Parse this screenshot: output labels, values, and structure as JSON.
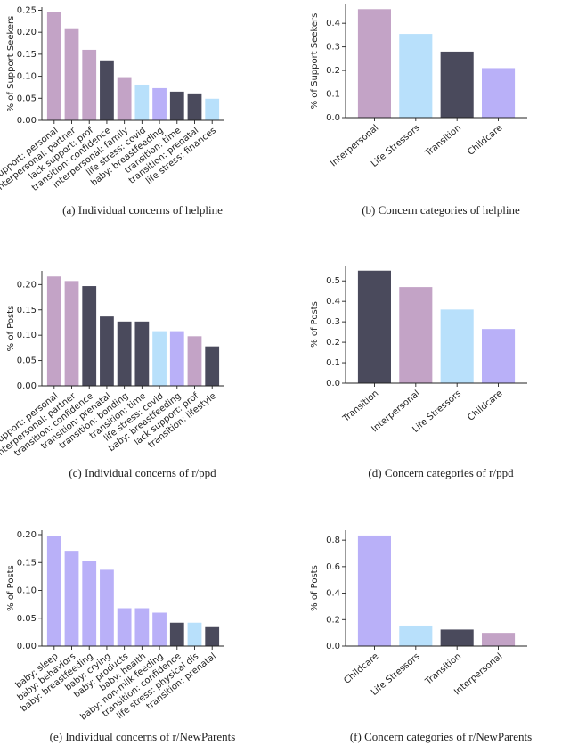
{
  "chart_data": [
    {
      "type": "bar",
      "caption": "(a)  Individual concerns of helpline",
      "ylabel": "% of Support Seekers",
      "categories": [
        "lack support: personal",
        "interpersonal: partner",
        "lack support: prof",
        "transition: confidence",
        "interpersonal: family",
        "life stress: covid",
        "baby: breastfeeding",
        "transition: time",
        "transition: prenatal",
        "life stress: finances"
      ],
      "values": [
        0.245,
        0.209,
        0.16,
        0.136,
        0.098,
        0.081,
        0.073,
        0.065,
        0.061,
        0.049
      ],
      "colors": [
        "#c3a3c6",
        "#c3a3c6",
        "#c3a3c6",
        "#4a4a5c",
        "#c3a3c6",
        "#b8e0fb",
        "#b9b0f8",
        "#4a4a5c",
        "#4a4a5c",
        "#b8e0fb"
      ],
      "ylim": [
        0,
        0.257
      ],
      "yticks": [
        {
          "value": 0,
          "label": "0.00"
        },
        {
          "value": 0.05,
          "label": "0.05"
        },
        {
          "value": 0.1,
          "label": "0.10"
        },
        {
          "value": 0.15,
          "label": "0.15"
        },
        {
          "value": 0.2,
          "label": "0.20"
        },
        {
          "value": 0.25,
          "label": "0.25"
        }
      ]
    },
    {
      "type": "bar",
      "caption": "(b)  Concern categories of helpline",
      "ylabel": "% of Support Seekers",
      "categories": [
        "Interpersonal",
        "Life Stressors",
        "Transition",
        "Childcare"
      ],
      "values": [
        0.46,
        0.355,
        0.28,
        0.21
      ],
      "colors": [
        "#c3a3c6",
        "#b8e0fb",
        "#4a4a5c",
        "#b9b0f8"
      ],
      "ylim": [
        0,
        0.48
      ],
      "yticks": [
        {
          "value": 0,
          "label": "0.0"
        },
        {
          "value": 0.1,
          "label": "0.1"
        },
        {
          "value": 0.2,
          "label": "0.2"
        },
        {
          "value": 0.3,
          "label": "0.3"
        },
        {
          "value": 0.4,
          "label": "0.4"
        }
      ]
    },
    {
      "type": "bar",
      "caption": "(c)  Individual concerns of r/ppd",
      "ylabel": "% of Posts",
      "categories": [
        "lack support: personal",
        "interpersonal: partner",
        "transition: confidence",
        "transition: prenatal",
        "transition: bonding",
        "transition: time",
        "life stress: covid",
        "baby: breastfeeding",
        "lack support: prof",
        "transition: lifestyle"
      ],
      "values": [
        0.216,
        0.207,
        0.197,
        0.137,
        0.127,
        0.127,
        0.108,
        0.108,
        0.098,
        0.078
      ],
      "colors": [
        "#c3a3c6",
        "#c3a3c6",
        "#4a4a5c",
        "#4a4a5c",
        "#4a4a5c",
        "#4a4a5c",
        "#b8e0fb",
        "#b9b0f8",
        "#c3a3c6",
        "#4a4a5c"
      ],
      "ylim": [
        0,
        0.227
      ],
      "yticks": [
        {
          "value": 0,
          "label": "0.00"
        },
        {
          "value": 0.05,
          "label": "0.05"
        },
        {
          "value": 0.1,
          "label": "0.10"
        },
        {
          "value": 0.15,
          "label": "0.15"
        },
        {
          "value": 0.2,
          "label": "0.20"
        }
      ]
    },
    {
      "type": "bar",
      "caption": "(d)  Concern categories of r/ppd",
      "ylabel": "% of Posts",
      "categories": [
        "Transition",
        "Interpersonal",
        "Life Stressors",
        "Childcare"
      ],
      "values": [
        0.55,
        0.47,
        0.36,
        0.265
      ],
      "colors": [
        "#4a4a5c",
        "#c3a3c6",
        "#b8e0fb",
        "#b9b0f8"
      ],
      "ylim": [
        0,
        0.575
      ],
      "yticks": [
        {
          "value": 0,
          "label": "0.0"
        },
        {
          "value": 0.1,
          "label": "0.1"
        },
        {
          "value": 0.2,
          "label": "0.2"
        },
        {
          "value": 0.3,
          "label": "0.3"
        },
        {
          "value": 0.4,
          "label": "0.4"
        },
        {
          "value": 0.5,
          "label": "0.5"
        }
      ]
    },
    {
      "type": "bar",
      "caption": "(e)  Individual concerns of r/NewParents",
      "ylabel": "% of Posts",
      "categories": [
        "baby: sleep",
        "baby: behaviors",
        "baby: breastfeeding",
        "baby: crying",
        "baby: products",
        "baby: health",
        "baby: non-milk feeding",
        "transition: confidence",
        "life stress: physical dis",
        "transition: prenatal"
      ],
      "values": [
        0.197,
        0.171,
        0.153,
        0.137,
        0.068,
        0.068,
        0.06,
        0.042,
        0.042,
        0.034
      ],
      "colors": [
        "#b9b0f8",
        "#b9b0f8",
        "#b9b0f8",
        "#b9b0f8",
        "#b9b0f8",
        "#b9b0f8",
        "#b9b0f8",
        "#4a4a5c",
        "#b8e0fb",
        "#4a4a5c"
      ],
      "ylim": [
        0,
        0.208
      ],
      "yticks": [
        {
          "value": 0,
          "label": "0.00"
        },
        {
          "value": 0.05,
          "label": "0.05"
        },
        {
          "value": 0.1,
          "label": "0.10"
        },
        {
          "value": 0.15,
          "label": "0.15"
        },
        {
          "value": 0.2,
          "label": "0.20"
        }
      ]
    },
    {
      "type": "bar",
      "caption": "(f)  Concern categories of r/NewParents",
      "ylabel": "% of Posts",
      "categories": [
        "Childcare",
        "Life Stressors",
        "Transition",
        "Interpersonal"
      ],
      "values": [
        0.835,
        0.155,
        0.125,
        0.1
      ],
      "colors": [
        "#b9b0f8",
        "#b8e0fb",
        "#4a4a5c",
        "#c3a3c6"
      ],
      "ylim": [
        0,
        0.875
      ],
      "yticks": [
        {
          "value": 0,
          "label": "0.0"
        },
        {
          "value": 0.2,
          "label": "0.2"
        },
        {
          "value": 0.4,
          "label": "0.4"
        },
        {
          "value": 0.6,
          "label": "0.6"
        },
        {
          "value": 0.8,
          "label": "0.8"
        }
      ]
    }
  ]
}
